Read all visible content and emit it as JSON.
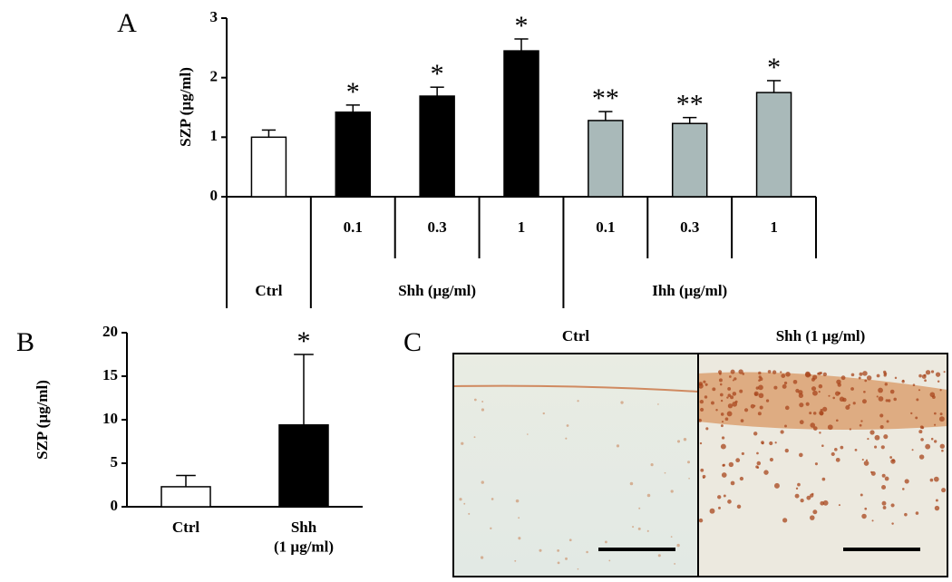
{
  "chart_data": [
    {
      "type": "bar",
      "label": "A",
      "ylabel": "SZP (µg/ml)",
      "ylim": [
        0,
        3
      ],
      "yticks": [
        0,
        1,
        2,
        3
      ],
      "groups": [
        {
          "name": "Ctrl",
          "color": "#ffffff",
          "categories": [
            null
          ],
          "values": [
            1.0
          ],
          "errors": [
            0.12
          ],
          "annotations": [
            null
          ]
        },
        {
          "name": "Shh (µg/ml)",
          "color": "#000000",
          "categories": [
            "0.1",
            "0.3",
            "1"
          ],
          "values": [
            1.42,
            1.69,
            2.45
          ],
          "errors": [
            0.12,
            0.15,
            0.2
          ],
          "annotations": [
            "*",
            "*",
            "*"
          ]
        },
        {
          "name": "Ihh (µg/ml)",
          "color": "#a9b9b9",
          "categories": [
            "0.1",
            "0.3",
            "1"
          ],
          "values": [
            1.28,
            1.23,
            1.75
          ],
          "errors": [
            0.15,
            0.1,
            0.2
          ],
          "annotations": [
            "**",
            "**",
            "*"
          ]
        }
      ]
    },
    {
      "type": "bar",
      "label": "B",
      "ylabel": "SZP (µg/ml)",
      "ylim": [
        0,
        20
      ],
      "yticks": [
        0,
        5,
        10,
        15,
        20
      ],
      "categories": [
        "Ctrl",
        "Shh\n(1 µg/ml)"
      ],
      "colors": [
        "#ffffff",
        "#000000"
      ],
      "values": [
        2.3,
        9.4
      ],
      "errors": [
        1.3,
        8.1
      ],
      "annotations": [
        null,
        "*"
      ]
    }
  ],
  "micrograph": {
    "label": "C",
    "titles": [
      "Ctrl",
      "Shh (1 µg/ml)"
    ]
  }
}
